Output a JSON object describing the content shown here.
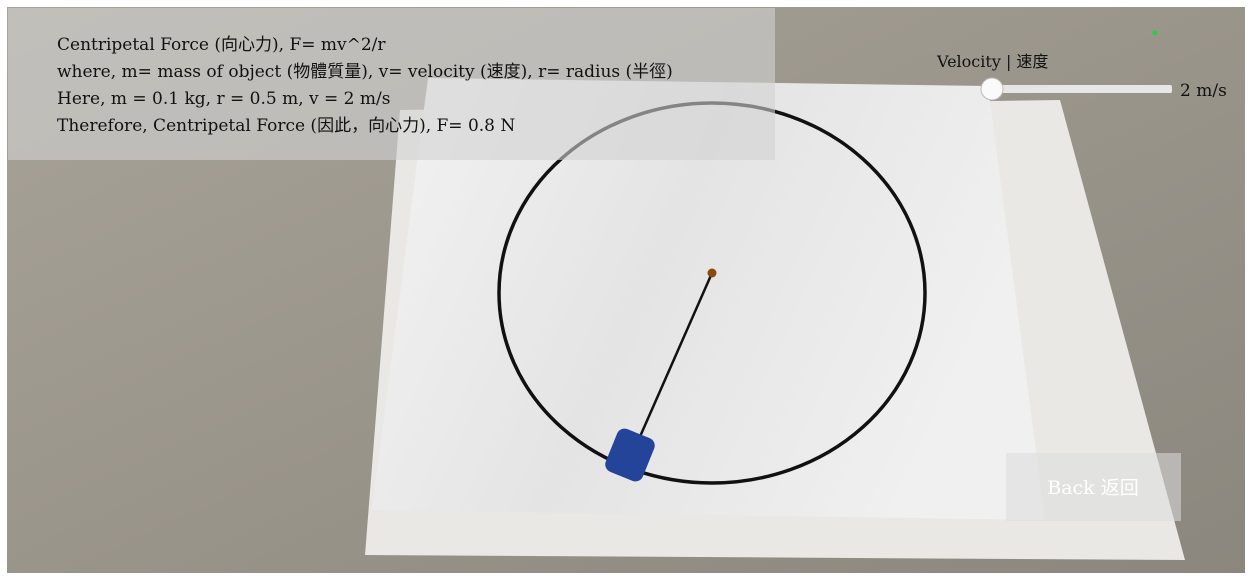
{
  "info_panel": {
    "lines": [
      "Centripetal Force (向心力), F= mv^2/r",
      "where, m= mass of object (物體質量), v= velocity (速度), r= radius (半徑)",
      "Here, m = 0.1 kg, r = 0.5 m, v = 2 m/s",
      "Therefore, Centripetal Force (因此，向心力), F= 0.8 N"
    ]
  },
  "velocity_slider": {
    "label": "Velocity | 速度",
    "value_label": "2 m/s"
  },
  "back_button": {
    "label": "Back 返回"
  }
}
